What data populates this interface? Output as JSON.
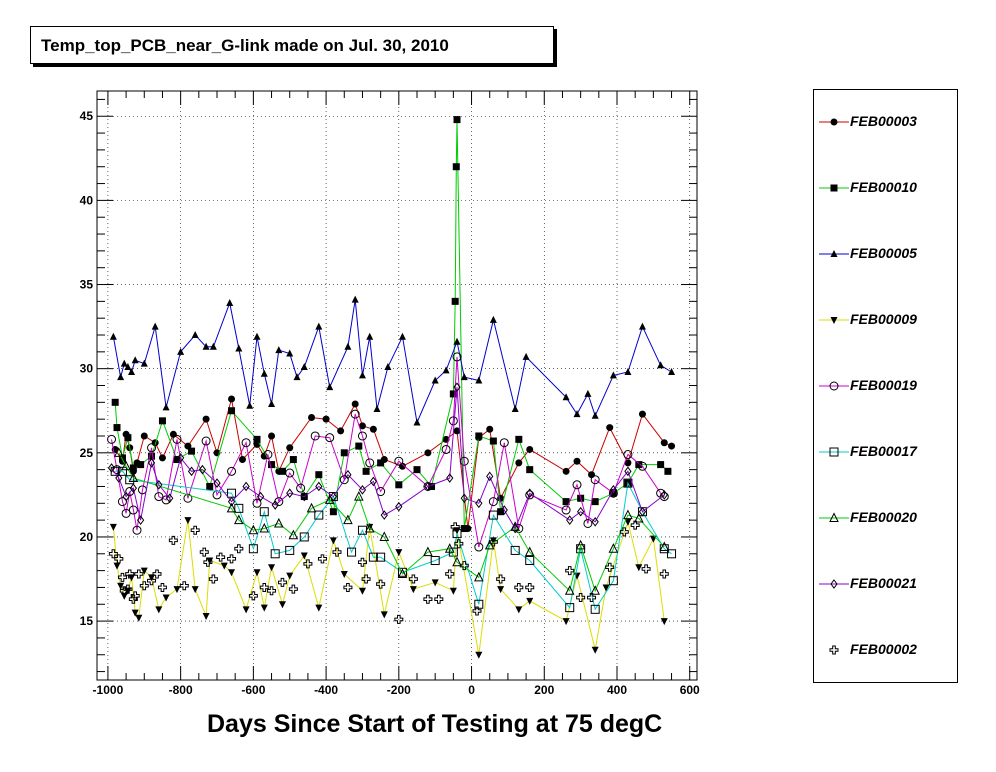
{
  "title": "Temp_top_PCB_near_G-link made on Jul. 30, 2010",
  "chart_data": {
    "type": "scatter",
    "title": "Temp_top_PCB_near_G-link made on Jul. 30, 2010",
    "xlabel": "Days Since Start of Testing at 75 degC",
    "ylabel": "",
    "xlim": [
      -1030,
      620
    ],
    "ylim": [
      11.5,
      46.5
    ],
    "grid": true,
    "legend_position": "right",
    "xticks": [
      -1000,
      -800,
      -600,
      -400,
      -200,
      0,
      200,
      400,
      600
    ],
    "xtick_labels": [
      "-1000",
      "-800",
      "-600",
      "-400",
      "-200",
      "0",
      "200",
      "400",
      "600"
    ],
    "yticks": [
      15,
      20,
      25,
      30,
      35,
      40,
      45
    ],
    "ytick_labels": [
      "15",
      "20",
      "25",
      "30",
      "35",
      "40",
      "45"
    ],
    "series": [
      {
        "name": "FEB00003",
        "color": "#cc0000",
        "marker": "circle-filled",
        "x": [
          -980,
          -960,
          -950,
          -940,
          -930,
          -920,
          -900,
          -870,
          -850,
          -820,
          -780,
          -730,
          -700,
          -660,
          -630,
          -590,
          -570,
          -550,
          -530,
          -500,
          -440,
          -400,
          -360,
          -320,
          -300,
          -270,
          -240,
          -190,
          -120,
          -70,
          -40,
          -10,
          20,
          50,
          80,
          130,
          160,
          260,
          290,
          330,
          380,
          430,
          470,
          530,
          550
        ],
        "y": [
          25.2,
          24.5,
          26.1,
          25.3,
          23.9,
          24.4,
          26.0,
          25.6,
          24.7,
          26.1,
          25.4,
          27.0,
          25.0,
          28.2,
          24.6,
          25.5,
          24.8,
          26.0,
          23.9,
          25.3,
          27.1,
          27.0,
          26.3,
          27.9,
          26.6,
          26.4,
          24.6,
          24.2,
          25.0,
          25.8,
          26.3,
          20.5,
          25.9,
          26.4,
          22.3,
          24.4,
          25.2,
          23.9,
          24.5,
          23.7,
          26.5,
          24.4,
          27.3,
          25.6,
          25.4
        ]
      },
      {
        "name": "FEB00010",
        "color": "#00cc00",
        "marker": "square-filled",
        "x": [
          -980,
          -975,
          -960,
          -945,
          -930,
          -910,
          -880,
          -850,
          -810,
          -770,
          -720,
          -660,
          -590,
          -550,
          -520,
          -490,
          -460,
          -420,
          -380,
          -350,
          -310,
          -290,
          -250,
          -200,
          -150,
          -110,
          -50,
          -45,
          -42,
          -40,
          -20,
          20,
          60,
          80,
          130,
          160,
          260,
          300,
          340,
          390,
          430,
          460,
          520,
          540
        ],
        "y": [
          28.0,
          26.5,
          24.7,
          25.9,
          24.1,
          24.3,
          24.8,
          26.9,
          24.6,
          25.1,
          23.0,
          27.5,
          25.8,
          24.3,
          23.9,
          24.6,
          22.4,
          23.7,
          21.5,
          25.0,
          25.4,
          23.9,
          24.4,
          23.1,
          24.0,
          23.0,
          28.5,
          34.0,
          42.0,
          44.8,
          20.5,
          26.0,
          25.7,
          21.5,
          25.8,
          24.0,
          22.1,
          22.3,
          22.1,
          22.6,
          23.2,
          24.3,
          24.3,
          23.9
        ]
      },
      {
        "name": "FEB00005",
        "color": "#0000cc",
        "marker": "triangle-up-filled",
        "x": [
          -985,
          -965,
          -955,
          -945,
          -935,
          -925,
          -900,
          -870,
          -840,
          -800,
          -760,
          -730,
          -710,
          -665,
          -640,
          -610,
          -590,
          -570,
          -550,
          -530,
          -500,
          -480,
          -460,
          -420,
          -390,
          -340,
          -320,
          -300,
          -280,
          -260,
          -230,
          -190,
          -150,
          -100,
          -70,
          -40,
          -20,
          20,
          60,
          120,
          150,
          260,
          290,
          320,
          340,
          390,
          430,
          470,
          520,
          550
        ],
        "y": [
          31.9,
          29.5,
          30.3,
          30.1,
          29.8,
          30.5,
          30.3,
          32.5,
          27.7,
          31.0,
          32.0,
          31.3,
          31.3,
          33.9,
          31.2,
          27.8,
          31.9,
          29.7,
          27.9,
          31.1,
          30.9,
          29.5,
          30.1,
          32.5,
          28.9,
          31.3,
          34.1,
          29.6,
          31.9,
          27.6,
          30.1,
          31.9,
          26.8,
          29.3,
          29.9,
          31.6,
          29.5,
          29.3,
          32.9,
          27.6,
          30.7,
          28.3,
          27.3,
          28.5,
          27.2,
          29.6,
          29.8,
          32.5,
          30.2,
          29.8
        ]
      },
      {
        "name": "FEB00009",
        "color": "#dddd00",
        "marker": "triangle-down-filled",
        "x": [
          -985,
          -975,
          -965,
          -955,
          -945,
          -935,
          -925,
          -915,
          -900,
          -880,
          -860,
          -840,
          -810,
          -780,
          -760,
          -730,
          -720,
          -680,
          -660,
          -620,
          -590,
          -570,
          -550,
          -520,
          -500,
          -460,
          -420,
          -380,
          -350,
          -300,
          -280,
          -240,
          -200,
          -160,
          -100,
          -50,
          -40,
          20,
          60,
          80,
          130,
          160,
          260,
          290,
          340,
          370,
          430,
          460,
          500,
          530
        ],
        "y": [
          20.6,
          18.3,
          17.1,
          16.5,
          16.8,
          17.6,
          15.5,
          15.2,
          18.0,
          17.6,
          15.7,
          16.4,
          16.9,
          21.0,
          16.9,
          15.3,
          18.6,
          18.3,
          17.9,
          15.7,
          17.9,
          15.8,
          18.2,
          16.0,
          17.7,
          18.9,
          15.8,
          19.8,
          17.8,
          16.8,
          20.6,
          15.4,
          19.1,
          16.9,
          17.3,
          16.8,
          20.4,
          13.0,
          19.8,
          16.9,
          15.7,
          16.2,
          15.0,
          17.7,
          13.3,
          17.0,
          20.9,
          18.2,
          19.9,
          15.0
        ]
      },
      {
        "name": "FEB00019",
        "color": "#cc00cc",
        "marker": "circle-open",
        "x": [
          -990,
          -975,
          -960,
          -950,
          -940,
          -930,
          -920,
          -905,
          -880,
          -860,
          -840,
          -810,
          -780,
          -730,
          -700,
          -660,
          -620,
          -590,
          -560,
          -530,
          -500,
          -470,
          -430,
          -390,
          -350,
          -320,
          -300,
          -280,
          -250,
          -200,
          -120,
          -70,
          -50,
          -40,
          -20,
          20,
          60,
          90,
          130,
          160,
          260,
          290,
          320,
          340,
          390,
          430,
          470,
          520,
          530
        ],
        "y": [
          25.8,
          24.0,
          22.1,
          21.4,
          22.7,
          21.6,
          20.4,
          22.8,
          25.3,
          22.4,
          22.2,
          25.8,
          22.3,
          25.7,
          22.5,
          23.9,
          25.6,
          22.0,
          24.9,
          22.1,
          23.8,
          22.9,
          26.0,
          25.9,
          23.4,
          27.3,
          26.0,
          24.4,
          22.7,
          24.5,
          23.0,
          25.2,
          26.9,
          30.7,
          24.5,
          19.4,
          22.1,
          25.6,
          20.5,
          22.5,
          21.6,
          23.1,
          20.8,
          23.4,
          22.6,
          24.9,
          24.2,
          22.6,
          22.4
        ]
      },
      {
        "name": "FEB00017",
        "color": "#00cccc",
        "marker": "square-open",
        "x": [
          -980,
          -960,
          -940,
          -660,
          -640,
          -600,
          -570,
          -540,
          -500,
          -460,
          -420,
          -380,
          -330,
          -300,
          -270,
          -250,
          -190,
          -100,
          -50,
          -40,
          20,
          60,
          120,
          160,
          270,
          300,
          340,
          390,
          430,
          470,
          530,
          550
        ],
        "y": [
          23.9,
          23.9,
          23.4,
          22.6,
          21.7,
          19.3,
          21.5,
          19.0,
          19.2,
          20.0,
          21.3,
          22.4,
          19.1,
          20.4,
          18.8,
          18.8,
          17.9,
          18.6,
          19.1,
          20.2,
          16.0,
          21.3,
          19.2,
          18.6,
          15.8,
          19.3,
          15.7,
          17.4,
          23.2,
          21.5,
          19.3,
          19.0
        ]
      },
      {
        "name": "FEB00020",
        "color": "#00cc00",
        "marker": "triangle-up-open",
        "x": [
          -970,
          -950,
          -930,
          -660,
          -640,
          -600,
          -570,
          -530,
          -490,
          -440,
          -390,
          -340,
          -310,
          -280,
          -240,
          -190,
          -120,
          -60,
          -40,
          20,
          50,
          120,
          160,
          270,
          300,
          340,
          390,
          430,
          460,
          530
        ],
        "y": [
          25.0,
          24.2,
          23.5,
          21.7,
          21.0,
          20.4,
          20.5,
          20.8,
          20.1,
          21.7,
          22.2,
          21.0,
          22.4,
          20.5,
          20.0,
          17.8,
          19.1,
          19.3,
          18.5,
          17.6,
          19.5,
          20.6,
          19.1,
          16.8,
          19.5,
          16.8,
          19.3,
          21.3,
          21.1,
          19.4
        ]
      },
      {
        "name": "FEB00021",
        "color": "#8800cc",
        "marker": "diamond-open",
        "x": [
          -990,
          -970,
          -950,
          -930,
          -910,
          -880,
          -860,
          -830,
          -800,
          -770,
          -740,
          -700,
          -660,
          -620,
          -580,
          -540,
          -500,
          -460,
          -420,
          -380,
          -340,
          -300,
          -270,
          -240,
          -200,
          -120,
          -60,
          -40,
          -20,
          20,
          50,
          90,
          120,
          160,
          270,
          300,
          340,
          390,
          430,
          470,
          530
        ],
        "y": [
          24.1,
          23.5,
          22.4,
          22.9,
          21.0,
          24.4,
          23.1,
          22.3,
          24.7,
          23.9,
          24.0,
          23.2,
          22.1,
          23.0,
          22.4,
          21.9,
          22.6,
          22.4,
          23.0,
          22.4,
          23.7,
          22.8,
          23.3,
          21.3,
          21.8,
          23.0,
          23.5,
          28.9,
          22.3,
          22.0,
          23.6,
          21.6,
          20.5,
          22.6,
          21.0,
          21.5,
          20.9,
          22.8,
          23.9,
          21.5,
          22.5
        ]
      },
      {
        "name": "FEB00002",
        "color": "#000000",
        "marker": "plus-open",
        "x": [
          -985,
          -970,
          -960,
          -955,
          -945,
          -940,
          -930,
          -925,
          -915,
          -900,
          -880,
          -865,
          -850,
          -820,
          -790,
          -760,
          -735,
          -725,
          -710,
          -690,
          -660,
          -640,
          -600,
          -570,
          -550,
          -520,
          -490,
          -450,
          -410,
          -370,
          -340,
          -300,
          -290,
          -250,
          -200,
          -160,
          -120,
          -90,
          -60,
          -45,
          -35,
          -20,
          15,
          60,
          80,
          130,
          160,
          270,
          300,
          330,
          380,
          420,
          450,
          480,
          530
        ],
        "y": [
          19.0,
          18.7,
          17.6,
          16.8,
          16.9,
          17.8,
          16.3,
          16.5,
          17.8,
          17.1,
          17.4,
          17.8,
          17.0,
          19.8,
          17.1,
          20.4,
          19.1,
          18.5,
          17.5,
          18.8,
          18.7,
          19.3,
          16.5,
          17.0,
          16.8,
          17.3,
          16.9,
          18.4,
          18.7,
          19.1,
          17.0,
          18.5,
          17.5,
          17.2,
          15.1,
          17.5,
          16.3,
          16.3,
          17.8,
          20.6,
          19.6,
          18.3,
          15.6,
          19.7,
          17.5,
          17.0,
          17.0,
          18.0,
          16.4,
          16.4,
          18.2,
          20.3,
          20.7,
          18.1,
          17.8
        ]
      }
    ]
  }
}
